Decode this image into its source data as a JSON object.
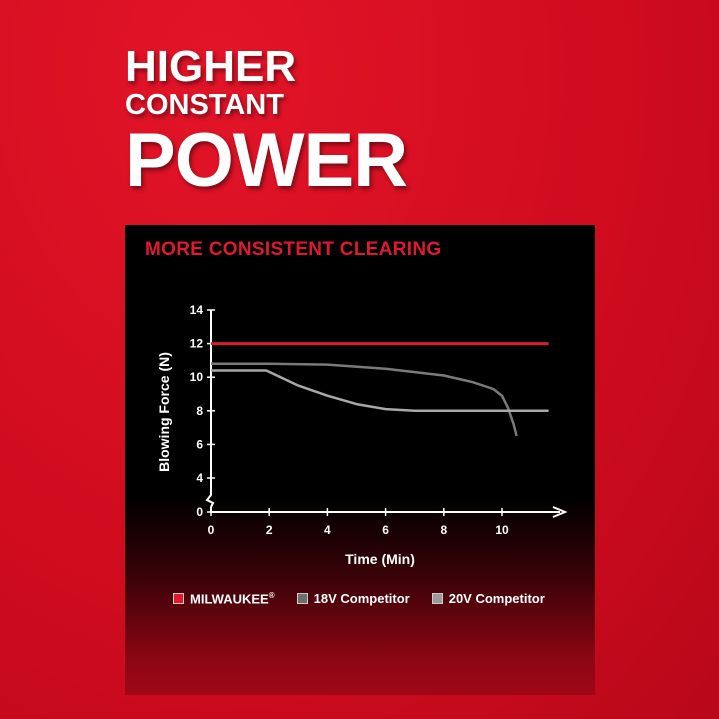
{
  "headline": {
    "line1": "HIGHER",
    "line2": "CONSTANT",
    "line3": "POWER"
  },
  "chart_data": {
    "type": "line",
    "title": "MORE CONSISTENT CLEARING",
    "xlabel": "Time (Min)",
    "ylabel": "Blowing Force (N)",
    "xticks": [
      "0",
      "2",
      "4",
      "6",
      "8",
      "10"
    ],
    "yticks": [
      "0",
      "4",
      "6",
      "8",
      "10",
      "12",
      "14"
    ],
    "xlim": [
      0,
      11.6
    ],
    "ylim": [
      0,
      14
    ],
    "y_axis_break": true,
    "legend_placement": "bottom",
    "series": [
      {
        "name": "MILWAUKEE",
        "mark": "®",
        "color": "#e0192f",
        "x": [
          0,
          11.6
        ],
        "y": [
          12,
          12
        ]
      },
      {
        "name": "18V Competitor",
        "color": "#7a7a7a",
        "x": [
          0,
          2,
          4,
          6,
          8,
          9,
          9.7,
          10,
          10.2,
          10.4,
          10.5
        ],
        "y": [
          10.8,
          10.8,
          10.75,
          10.5,
          10.1,
          9.7,
          9.3,
          8.9,
          8.2,
          7.2,
          6.5
        ]
      },
      {
        "name": "20V Competitor",
        "color": "#a8a8a8",
        "x": [
          0,
          1.9,
          3,
          4,
          5,
          6,
          7,
          8,
          11.6
        ],
        "y": [
          10.4,
          10.4,
          9.5,
          8.9,
          8.4,
          8.1,
          8.0,
          8.0,
          8.0
        ]
      }
    ]
  }
}
